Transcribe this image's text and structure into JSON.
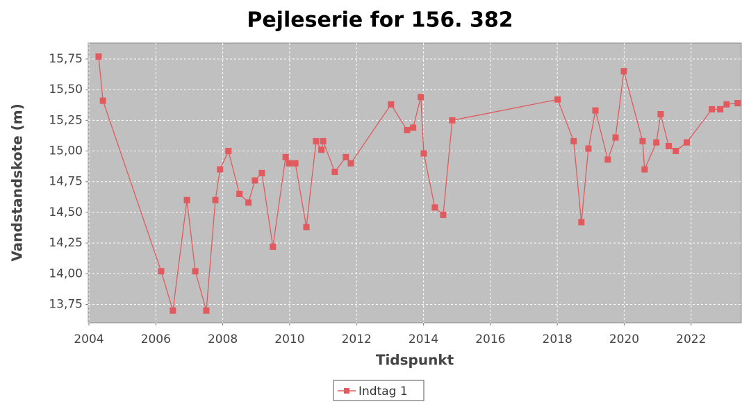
{
  "chart_data": {
    "type": "line",
    "title": "Pejleserie for 156.  382",
    "x_label": "Tidspunkt",
    "y_label": "Vandstandskote (m)",
    "x": [
      2004.29,
      2004.42,
      2006.16,
      2006.51,
      2006.93,
      2007.18,
      2007.51,
      2007.78,
      2007.92,
      2008.17,
      2008.5,
      2008.77,
      2008.96,
      2009.17,
      2009.5,
      2009.88,
      2009.98,
      2010.17,
      2010.5,
      2010.79,
      2010.95,
      2011.0,
      2011.35,
      2011.68,
      2011.83,
      2013.03,
      2013.51,
      2013.69,
      2013.92,
      2014.01,
      2014.34,
      2014.59,
      2014.86,
      2018.01,
      2018.49,
      2018.72,
      2018.93,
      2019.14,
      2019.51,
      2019.74,
      2019.99,
      2020.55,
      2020.61,
      2020.96,
      2021.09,
      2021.33,
      2021.54,
      2021.87,
      2022.62,
      2022.87,
      2023.06,
      2023.39
    ],
    "series": [
      {
        "name": "Indtag 1",
        "color": "#e05a5e",
        "values": [
          15.77,
          15.41,
          14.02,
          13.7,
          14.6,
          14.02,
          13.7,
          14.6,
          14.85,
          15.0,
          14.65,
          14.58,
          14.76,
          14.82,
          14.22,
          14.95,
          14.9,
          14.9,
          14.38,
          15.08,
          15.01,
          15.08,
          14.83,
          14.95,
          14.9,
          15.38,
          15.17,
          15.19,
          15.44,
          14.98,
          14.54,
          14.48,
          15.25,
          15.42,
          15.08,
          14.42,
          15.02,
          15.33,
          14.93,
          15.11,
          15.65,
          15.08,
          14.85,
          15.07,
          15.3,
          15.04,
          15.0,
          15.07,
          15.34,
          15.34,
          15.38,
          15.39
        ]
      }
    ],
    "xlim": [
      2003.98,
      2023.5
    ],
    "xticks": [
      2004,
      2006,
      2008,
      2010,
      2012,
      2014,
      2016,
      2018,
      2020,
      2022
    ],
    "ylim": [
      13.6,
      15.88
    ],
    "yticks": [
      {
        "value": 13.75,
        "label": "13,75"
      },
      {
        "value": 14.0,
        "label": "14,00"
      },
      {
        "value": 14.25,
        "label": "14,25"
      },
      {
        "value": 14.5,
        "label": "14,50"
      },
      {
        "value": 14.75,
        "label": "14,75"
      },
      {
        "value": 15.0,
        "label": "15,00"
      },
      {
        "value": 15.25,
        "label": "15,25"
      },
      {
        "value": 15.5,
        "label": "15,50"
      },
      {
        "value": 15.75,
        "label": "15,75"
      }
    ],
    "grid": true,
    "legend": "bottom"
  }
}
